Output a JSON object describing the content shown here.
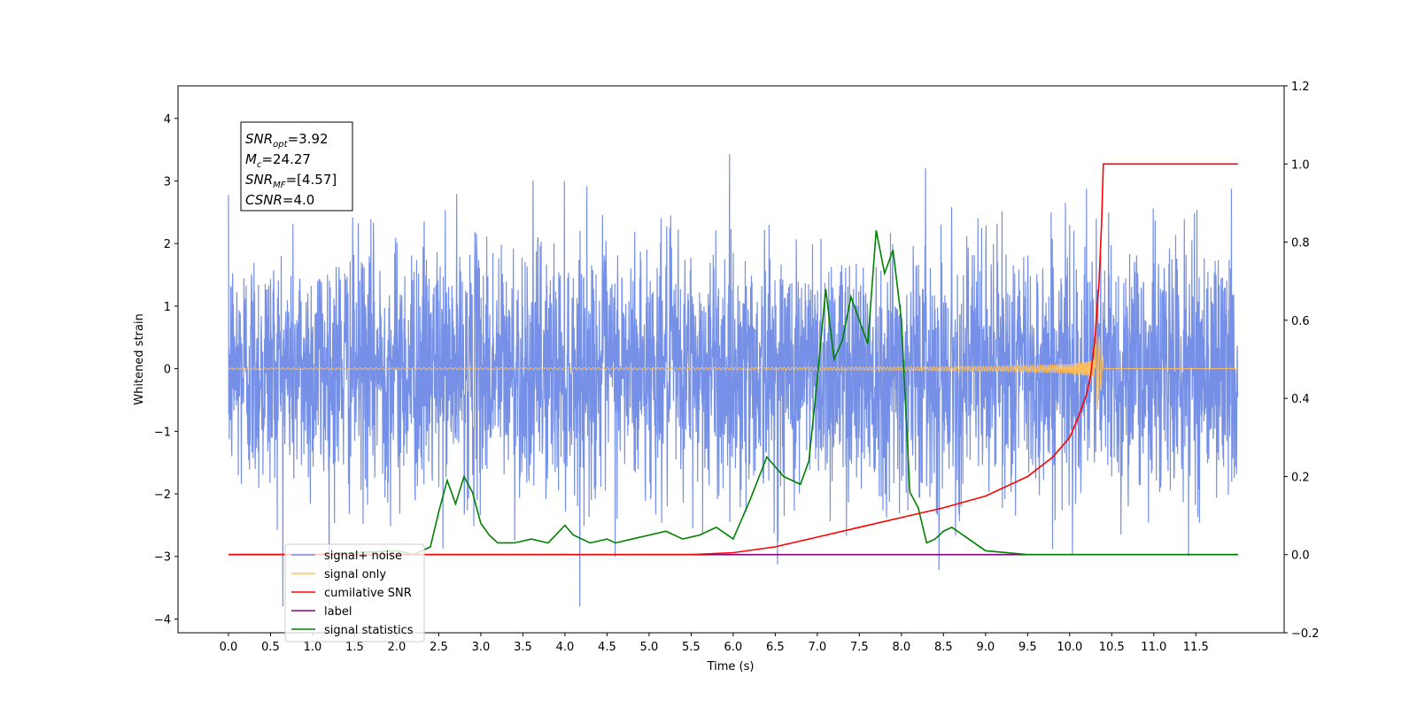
{
  "chart_data": {
    "type": "line",
    "xlabel": "Time (s)",
    "ylabel": "Whitened strain",
    "xlim": [
      -0.6,
      12.55
    ],
    "ylim": [
      -4.22,
      4.52
    ],
    "y2lim": [
      -0.2,
      1.2
    ],
    "x_ticks": [
      "0.0",
      "0.5",
      "1.0",
      "1.5",
      "2.0",
      "2.5",
      "3.0",
      "3.5",
      "4.0",
      "4.5",
      "5.0",
      "5.5",
      "6.0",
      "6.5",
      "7.0",
      "7.5",
      "8.0",
      "8.5",
      "9.0",
      "9.5",
      "10.0",
      "10.5",
      "11.0",
      "11.5"
    ],
    "y_ticks": [
      "4",
      "3",
      "2",
      "1",
      "0",
      "−1",
      "−2",
      "−3",
      "−4"
    ],
    "y2_ticks": [
      "1.2",
      "1.0",
      "0.8",
      "0.6",
      "0.4",
      "0.2",
      "0.0",
      "−0.2"
    ],
    "annotation": {
      "lines": [
        {
          "var": "SNR",
          "sub": "opt",
          "value": "=3.92"
        },
        {
          "var": "M",
          "sub": "c",
          "value": "=24.27"
        },
        {
          "var": "SNR",
          "sub": "MF",
          "value": "=[4.57]"
        },
        {
          "var": "CSNR",
          "sub": "",
          "value": "=4.0"
        }
      ]
    },
    "legend": {
      "placement": "lower-left",
      "entries": [
        {
          "label": "signal+ noise",
          "color": "#7590e6"
        },
        {
          "label": "signal only",
          "color": "#ffbf5a"
        },
        {
          "label": "cumilative SNR",
          "color": "#ff0000"
        },
        {
          "label": "label",
          "color": "#800080"
        },
        {
          "label": "signal statistics",
          "color": "#008000"
        }
      ]
    },
    "series": [
      {
        "name": "signal+ noise",
        "axis": "left",
        "color": "#7590e6",
        "description": "white noise, std approx 1, spanning t = 0 to 12",
        "t_range": [
          0,
          12
        ],
        "std": 1.0
      },
      {
        "name": "signal only",
        "axis": "left",
        "color": "#ffbf5a",
        "description": "chirp growing in amplitude, merging near t = 10.4",
        "t_merge": 10.4,
        "peak_amplitude": 0.9
      },
      {
        "name": "cumilative SNR",
        "axis": "right",
        "color": "#ff0000",
        "x": [
          0,
          5.5,
          6.0,
          6.5,
          7.0,
          7.5,
          8.0,
          8.5,
          9.0,
          9.5,
          9.8,
          10.0,
          10.1,
          10.2,
          10.25,
          10.3,
          10.35,
          10.38,
          10.4,
          12.0
        ],
        "y": [
          0.0,
          0.0,
          0.005,
          0.02,
          0.045,
          0.07,
          0.095,
          0.12,
          0.15,
          0.2,
          0.25,
          0.3,
          0.35,
          0.41,
          0.46,
          0.55,
          0.7,
          0.85,
          1.0,
          1.0
        ]
      },
      {
        "name": "label",
        "axis": "right",
        "color": "#800080",
        "x": [
          0,
          12
        ],
        "y": [
          0,
          0
        ]
      },
      {
        "name": "signal statistics",
        "axis": "right",
        "color": "#008000",
        "x": [
          0,
          1.0,
          2.0,
          2.2,
          2.4,
          2.5,
          2.6,
          2.7,
          2.8,
          2.9,
          3.0,
          3.1,
          3.2,
          3.4,
          3.6,
          3.8,
          4.0,
          4.1,
          4.3,
          4.5,
          4.6,
          4.8,
          5.0,
          5.2,
          5.4,
          5.6,
          5.8,
          6.0,
          6.2,
          6.4,
          6.6,
          6.8,
          6.9,
          7.0,
          7.1,
          7.2,
          7.3,
          7.4,
          7.5,
          7.6,
          7.7,
          7.8,
          7.9,
          8.0,
          8.1,
          8.2,
          8.3,
          8.4,
          8.5,
          8.6,
          8.8,
          9.0,
          9.5,
          12.0
        ],
        "y": [
          0.0,
          0.0,
          0.01,
          0.0,
          0.02,
          0.11,
          0.19,
          0.13,
          0.2,
          0.16,
          0.08,
          0.05,
          0.03,
          0.03,
          0.04,
          0.03,
          0.075,
          0.05,
          0.03,
          0.04,
          0.03,
          0.04,
          0.05,
          0.06,
          0.04,
          0.05,
          0.07,
          0.04,
          0.14,
          0.25,
          0.2,
          0.18,
          0.24,
          0.45,
          0.68,
          0.5,
          0.55,
          0.66,
          0.6,
          0.54,
          0.83,
          0.72,
          0.78,
          0.6,
          0.16,
          0.12,
          0.03,
          0.04,
          0.06,
          0.07,
          0.04,
          0.01,
          0.0,
          0.0
        ]
      }
    ]
  }
}
